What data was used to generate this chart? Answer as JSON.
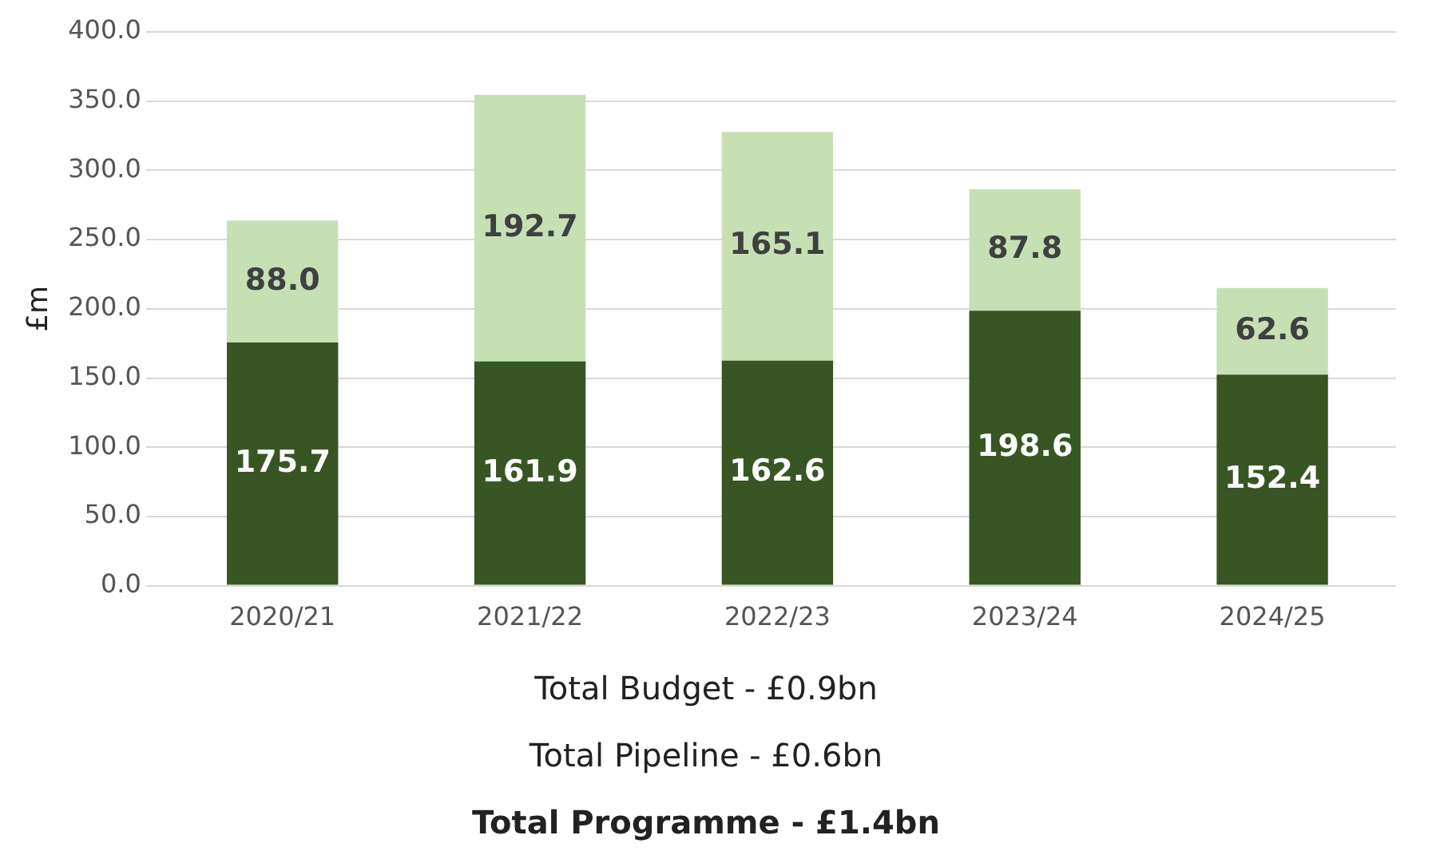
{
  "chart_data": {
    "type": "bar",
    "stacked": true,
    "ylabel": "£m",
    "categories": [
      "2020/21",
      "2021/22",
      "2022/23",
      "2023/24",
      "2024/25"
    ],
    "series": [
      {
        "color": "#375623",
        "values": [
          175.7,
          161.9,
          162.6,
          198.6,
          152.4
        ],
        "value_labels": [
          "175.7",
          "161.9",
          "162.6",
          "198.6",
          "152.4"
        ]
      },
      {
        "color": "#c6e0b4",
        "values": [
          88.0,
          192.7,
          165.1,
          87.8,
          62.6
        ],
        "value_labels": [
          "88.0",
          "192.7",
          "165.1",
          "87.8",
          "62.6"
        ]
      }
    ],
    "ylim": [
      0,
      400
    ],
    "yticks": [
      {
        "value": 0,
        "label": "0.0"
      },
      {
        "value": 50,
        "label": "50.0"
      },
      {
        "value": 100,
        "label": "100.0"
      },
      {
        "value": 150,
        "label": "150.0"
      },
      {
        "value": 200,
        "label": "200.0"
      },
      {
        "value": 250,
        "label": "250.0"
      },
      {
        "value": 300,
        "label": "300.0"
      },
      {
        "value": 350,
        "label": "350.0"
      },
      {
        "value": 400,
        "label": "400.0"
      }
    ],
    "grid": "y",
    "legend": false,
    "annotations": [
      "Total Budget - £0.9bn",
      "Total Pipeline - £0.6bn",
      "Total Programme - £1.4bn"
    ]
  }
}
